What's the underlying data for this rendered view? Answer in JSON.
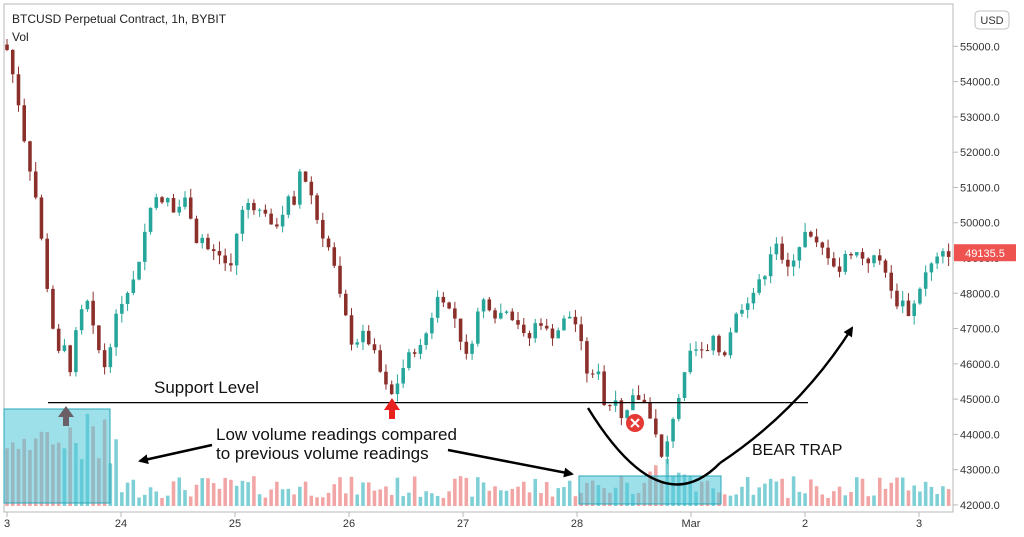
{
  "header": {
    "title": "BTCUSD Perpetual Contract, 1h, BYBIT",
    "volume_label": "Vol"
  },
  "currency": "USD",
  "last_price": "49135.5",
  "annotations": {
    "support": "Support Level",
    "low_volume_line1": "Low volume readings compared",
    "low_volume_line2": "to previous volume readings",
    "bear_trap": "BEAR TRAP",
    "support_price": 44900
  },
  "colors": {
    "up": "#26a69a",
    "down": "#8b2f2b",
    "vol_up": "#7fd0d6",
    "vol_down": "#f2a5a5",
    "arrow_red": "#e8201e",
    "price_tag": "#ef5350",
    "highlight": "#4cc6d8"
  },
  "chart_data": {
    "type": "candlestick",
    "ylim": [
      41800,
      56200
    ],
    "yticks": [
      "55000.0",
      "54000.0",
      "53000.0",
      "52000.0",
      "51000.0",
      "50000.0",
      "49000.0",
      "48000.0",
      "47000.0",
      "46000.0",
      "45000.0",
      "44000.0",
      "43000.0",
      "42000.0"
    ],
    "xticks": [
      {
        "label": "3",
        "day": 0
      },
      {
        "label": "24",
        "day": 1
      },
      {
        "label": "25",
        "day": 2
      },
      {
        "label": "26",
        "day": 3
      },
      {
        "label": "27",
        "day": 4
      },
      {
        "label": "28",
        "day": 5
      },
      {
        "label": "Mar",
        "day": 6
      },
      {
        "label": "2",
        "day": 7
      },
      {
        "label": "3",
        "day": 8
      }
    ],
    "close_path": [
      [
        0.0,
        54900
      ],
      [
        0.08,
        53800
      ],
      [
        0.16,
        52200
      ],
      [
        0.26,
        50600
      ],
      [
        0.36,
        48000
      ],
      [
        0.44,
        46200
      ],
      [
        0.5,
        46500
      ],
      [
        0.56,
        45800
      ],
      [
        0.62,
        47200
      ],
      [
        0.7,
        47800
      ],
      [
        0.78,
        46600
      ],
      [
        0.86,
        45900
      ],
      [
        0.92,
        46800
      ],
      [
        0.98,
        47600
      ],
      [
        1.05,
        48100
      ],
      [
        1.12,
        48400
      ],
      [
        1.18,
        49300
      ],
      [
        1.24,
        50200
      ],
      [
        1.3,
        50900
      ],
      [
        1.36,
        50500
      ],
      [
        1.42,
        50700
      ],
      [
        1.48,
        50100
      ],
      [
        1.54,
        50800
      ],
      [
        1.6,
        50400
      ],
      [
        1.66,
        49500
      ],
      [
        1.72,
        49600
      ],
      [
        1.78,
        49100
      ],
      [
        1.84,
        49200
      ],
      [
        1.9,
        48900
      ],
      [
        1.96,
        48700
      ],
      [
        2.02,
        49800
      ],
      [
        2.08,
        50500
      ],
      [
        2.14,
        50600
      ],
      [
        2.2,
        50300
      ],
      [
        2.26,
        50400
      ],
      [
        2.32,
        49800
      ],
      [
        2.4,
        50100
      ],
      [
        2.46,
        50700
      ],
      [
        2.52,
        50400
      ],
      [
        2.56,
        51500
      ],
      [
        2.62,
        51200
      ],
      [
        2.68,
        50700
      ],
      [
        2.74,
        49800
      ],
      [
        2.8,
        49500
      ],
      [
        2.86,
        48900
      ],
      [
        2.92,
        47900
      ],
      [
        2.98,
        47200
      ],
      [
        3.04,
        46400
      ],
      [
        3.1,
        46900
      ],
      [
        3.16,
        46700
      ],
      [
        3.22,
        46300
      ],
      [
        3.28,
        45700
      ],
      [
        3.34,
        45200
      ],
      [
        3.38,
        45100
      ],
      [
        3.44,
        45600
      ],
      [
        3.5,
        46100
      ],
      [
        3.56,
        46400
      ],
      [
        3.62,
        46400
      ],
      [
        3.68,
        46900
      ],
      [
        3.74,
        47500
      ],
      [
        3.8,
        48100
      ],
      [
        3.86,
        47600
      ],
      [
        3.92,
        47400
      ],
      [
        3.98,
        46700
      ],
      [
        4.02,
        46100
      ],
      [
        4.08,
        46700
      ],
      [
        4.14,
        47600
      ],
      [
        4.2,
        47900
      ],
      [
        4.26,
        47400
      ],
      [
        4.32,
        47400
      ],
      [
        4.38,
        47600
      ],
      [
        4.44,
        47300
      ],
      [
        4.5,
        47100
      ],
      [
        4.56,
        46500
      ],
      [
        4.62,
        47100
      ],
      [
        4.68,
        47200
      ],
      [
        4.74,
        46900
      ],
      [
        4.8,
        46800
      ],
      [
        4.86,
        47100
      ],
      [
        4.92,
        47400
      ],
      [
        4.98,
        47200
      ],
      [
        5.02,
        46800
      ],
      [
        5.08,
        45800
      ],
      [
        5.14,
        45600
      ],
      [
        5.18,
        46100
      ],
      [
        5.22,
        44900
      ],
      [
        5.28,
        44800
      ],
      [
        5.34,
        45100
      ],
      [
        5.38,
        44300
      ],
      [
        5.44,
        44600
      ],
      [
        5.5,
        45100
      ],
      [
        5.56,
        45000
      ],
      [
        5.62,
        44800
      ],
      [
        5.68,
        44100
      ],
      [
        5.74,
        43300
      ],
      [
        5.8,
        43800
      ],
      [
        5.86,
        44800
      ],
      [
        5.92,
        45300
      ],
      [
        5.98,
        46200
      ],
      [
        6.04,
        46400
      ],
      [
        6.1,
        46300
      ],
      [
        6.14,
        46300
      ],
      [
        6.2,
        46700
      ],
      [
        6.28,
        46100
      ],
      [
        6.34,
        46900
      ],
      [
        6.4,
        47400
      ],
      [
        6.46,
        47700
      ],
      [
        6.52,
        47900
      ],
      [
        6.58,
        48200
      ],
      [
        6.64,
        48500
      ],
      [
        6.7,
        49200
      ],
      [
        6.76,
        49500
      ],
      [
        6.82,
        48500
      ],
      [
        6.88,
        48900
      ],
      [
        6.94,
        49300
      ],
      [
        7.0,
        49700
      ],
      [
        7.06,
        49500
      ],
      [
        7.12,
        49300
      ],
      [
        7.18,
        49200
      ],
      [
        7.24,
        48900
      ],
      [
        7.3,
        48600
      ],
      [
        7.36,
        49100
      ],
      [
        7.42,
        49200
      ],
      [
        7.48,
        49100
      ],
      [
        7.54,
        48900
      ],
      [
        7.6,
        49000
      ],
      [
        7.66,
        48900
      ],
      [
        7.72,
        48600
      ],
      [
        7.78,
        47600
      ],
      [
        7.84,
        47900
      ],
      [
        7.9,
        47400
      ],
      [
        7.96,
        47700
      ],
      [
        8.02,
        48300
      ],
      [
        8.08,
        48700
      ],
      [
        8.14,
        48900
      ],
      [
        8.2,
        49100
      ],
      [
        8.26,
        49135
      ]
    ],
    "volume": {
      "ylim": [
        0,
        100
      ]
    }
  }
}
